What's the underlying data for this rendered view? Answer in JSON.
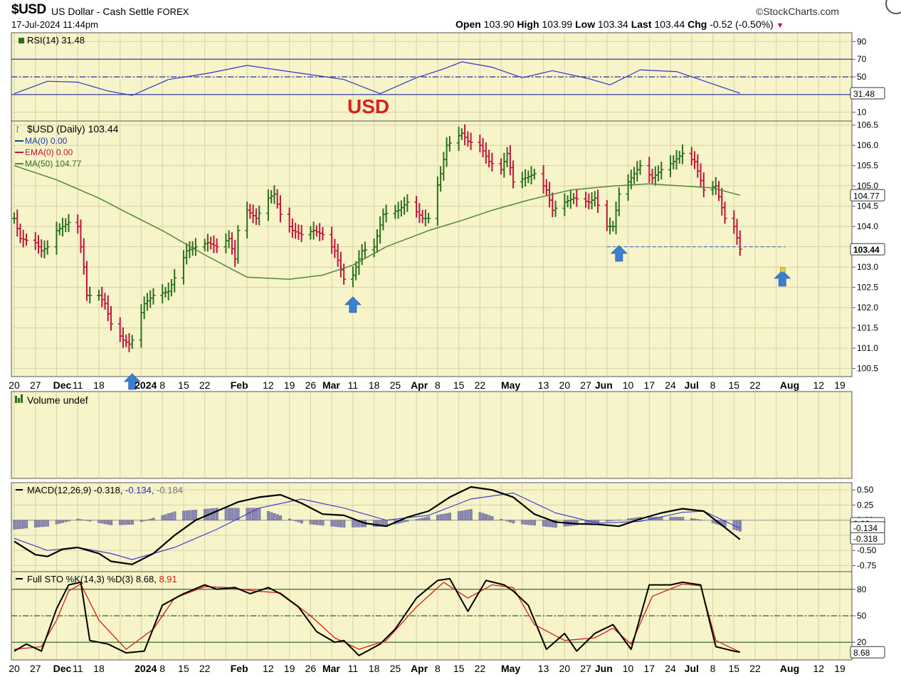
{
  "header": {
    "symbol": "$USD",
    "description": "US Dollar - Cash Settle",
    "exchange": "FOREX",
    "datetime": "17-Jul-2024 11:44pm",
    "source": "©StockCharts.com",
    "open_label": "Open",
    "open": "103.90",
    "high_label": "High",
    "high": "103.99",
    "low_label": "Low",
    "low": "103.34",
    "last_label": "Last",
    "last": "103.44",
    "chg_label": "Chg",
    "chg": "-0.52 (-0.50%)"
  },
  "colors": {
    "background": "#f6f4c8",
    "grid": "#d8d2a8",
    "up_bar": "#2c6f1e",
    "down_bar": "#c0143c",
    "ma50": "#4f8a3a",
    "rsi_line": "#3535c8",
    "macd_line": "#000000",
    "signal_line": "#4040d0",
    "histogram": "#8a87b8",
    "sto_k": "#000000",
    "sto_d": "#d81c1c",
    "arrow": "#3b7fd0",
    "annotation": "#d82020"
  },
  "annotation_text": "USD",
  "x_axis_labels": [
    "20",
    "27",
    "Dec",
    "11",
    "18",
    "2024",
    "8",
    "15",
    "22",
    "Feb",
    "12",
    "19",
    "26",
    "Mar",
    "11",
    "18",
    "25",
    "Apr",
    "8",
    "15",
    "22",
    "May",
    "13",
    "20",
    "27",
    "Jun",
    "10",
    "17",
    "24",
    "Jul",
    "8",
    "15",
    "22",
    "Aug",
    "12",
    "19"
  ],
  "chart_data": [
    {
      "type": "line",
      "panel": "RSI",
      "legend": "RSI(14) 31.48",
      "value": 31.48,
      "value_label": "31.48",
      "ylim": [
        0,
        100
      ],
      "ticks": [
        90,
        70,
        50,
        30,
        10
      ],
      "reference_lines": [
        70,
        50,
        30
      ],
      "series": [
        {
          "name": "RSI(14)",
          "x": [
            "2023-11-20",
            "2023-12-01",
            "2023-12-11",
            "2023-12-21",
            "2023-12-29",
            "2024-01-10",
            "2024-01-23",
            "2024-02-05",
            "2024-02-15",
            "2024-02-27",
            "2024-03-08",
            "2024-03-20",
            "2024-04-01",
            "2024-04-10",
            "2024-04-16",
            "2024-04-26",
            "2024-05-06",
            "2024-05-16",
            "2024-05-28",
            "2024-06-04",
            "2024-06-14",
            "2024-06-26",
            "2024-07-08",
            "2024-07-17"
          ],
          "values": [
            31,
            45,
            44,
            34,
            29,
            47,
            54,
            63,
            58,
            52,
            47,
            31,
            49,
            59,
            67,
            61,
            49,
            57,
            48,
            41,
            58,
            56,
            42,
            31.48
          ]
        }
      ]
    },
    {
      "type": "candlestick",
      "panel": "Price",
      "legend": [
        "$USD (Daily) 103.44",
        "MA(0) 0.00",
        "EMA(0) 0.00",
        "MA(50) 104.77"
      ],
      "last_label": "103.44",
      "ma50_label": "104.77",
      "ylim": [
        100.3,
        106.6
      ],
      "ticks": [
        106.5,
        106.0,
        105.5,
        105.0,
        104.5,
        104.0,
        103.5,
        103.0,
        102.5,
        102.0,
        101.5,
        101.0,
        100.5
      ],
      "support_line": 103.5,
      "close": {
        "x": [
          "2023-11-20",
          "2023-11-22",
          "2023-11-27",
          "2023-11-29",
          "2023-12-01",
          "2023-12-04",
          "2023-12-06",
          "2023-12-08",
          "2023-12-11",
          "2023-12-13",
          "2023-12-14",
          "2023-12-18",
          "2023-12-20",
          "2023-12-22",
          "2023-12-26",
          "2023-12-28",
          "2023-12-29",
          "2024-01-02",
          "2024-01-05",
          "2024-01-10",
          "2024-01-16",
          "2024-01-19",
          "2024-01-23",
          "2024-01-26",
          "2024-01-30",
          "2024-02-01",
          "2024-02-02",
          "2024-02-05",
          "2024-02-08",
          "2024-02-12",
          "2024-02-14",
          "2024-02-16",
          "2024-02-20",
          "2024-02-23",
          "2024-02-27",
          "2024-03-01",
          "2024-03-05",
          "2024-03-08",
          "2024-03-11",
          "2024-03-14",
          "2024-03-18",
          "2024-03-21",
          "2024-03-26",
          "2024-03-29",
          "2024-04-03",
          "2024-04-05",
          "2024-04-09",
          "2024-04-11",
          "2024-04-16",
          "2024-04-18",
          "2024-04-22",
          "2024-04-25",
          "2024-04-29",
          "2024-05-01",
          "2024-05-03",
          "2024-05-07",
          "2024-05-10",
          "2024-05-14",
          "2024-05-16",
          "2024-05-20",
          "2024-05-23",
          "2024-05-28",
          "2024-05-30",
          "2024-06-03",
          "2024-06-05",
          "2024-06-07",
          "2024-06-11",
          "2024-06-14",
          "2024-06-18",
          "2024-06-21",
          "2024-06-25",
          "2024-06-28",
          "2024-07-02",
          "2024-07-05",
          "2024-07-09",
          "2024-07-12",
          "2024-07-15",
          "2024-07-17"
        ],
        "values": [
          104.2,
          103.7,
          103.6,
          103.4,
          103.5,
          103.9,
          104.0,
          104.1,
          104.0,
          103.0,
          102.3,
          102.3,
          102.1,
          101.6,
          101.2,
          101.1,
          101.2,
          102.1,
          102.3,
          102.4,
          103.4,
          103.5,
          103.6,
          103.5,
          103.7,
          103.2,
          103.9,
          104.4,
          104.2,
          104.7,
          104.8,
          104.3,
          103.9,
          103.8,
          103.9,
          103.8,
          103.4,
          102.7,
          102.8,
          103.4,
          103.5,
          104.3,
          104.4,
          104.6,
          104.2,
          104.2,
          105.3,
          106.0,
          106.3,
          106.1,
          106.0,
          105.6,
          105.4,
          105.8,
          105.1,
          105.2,
          105.3,
          104.9,
          104.4,
          104.6,
          104.7,
          104.6,
          104.7,
          104.0,
          104.0,
          104.8,
          105.2,
          105.5,
          105.2,
          105.4,
          105.6,
          105.8,
          105.6,
          104.9,
          105.0,
          104.2,
          104.0,
          103.44
        ]
      },
      "ma50": {
        "x": [
          "2023-11-20",
          "2023-12-04",
          "2023-12-18",
          "2023-12-27",
          "2024-01-08",
          "2024-01-22",
          "2024-02-05",
          "2024-02-19",
          "2024-03-01",
          "2024-03-11",
          "2024-03-22",
          "2024-04-05",
          "2024-04-16",
          "2024-04-26",
          "2024-05-08",
          "2024-05-22",
          "2024-06-05",
          "2024-06-17",
          "2024-06-28",
          "2024-07-08",
          "2024-07-17"
        ],
        "values": [
          105.5,
          105.15,
          104.7,
          104.35,
          103.9,
          103.3,
          102.75,
          102.7,
          102.8,
          103.05,
          103.5,
          103.9,
          104.15,
          104.4,
          104.65,
          104.9,
          105.0,
          105.05,
          105.0,
          104.95,
          104.77
        ]
      },
      "arrows": [
        "2023-12-29",
        "2024-03-11",
        "2024-06-07",
        "2024-07-31"
      ]
    },
    {
      "type": "bar",
      "panel": "Volume",
      "legend": "Volume undef"
    },
    {
      "type": "line",
      "panel": "MACD",
      "legend": "MACD(12,26,9) -0.318",
      "legend_signal": "-0.134",
      "legend_hist": "-0.184",
      "macd_label": "-0.318",
      "signal_label": "-0.134",
      "zero_label": "0.00",
      "ylim": [
        -0.85,
        0.62
      ],
      "ticks": [
        0.5,
        0.25,
        0.0,
        -0.25,
        -0.5,
        -0.75
      ],
      "series": [
        {
          "name": "MACD",
          "x": [
            "2023-11-20",
            "2023-11-27",
            "2023-12-01",
            "2023-12-06",
            "2023-12-11",
            "2023-12-18",
            "2023-12-22",
            "2023-12-29",
            "2024-01-05",
            "2024-01-12",
            "2024-01-19",
            "2024-01-26",
            "2024-02-02",
            "2024-02-09",
            "2024-02-16",
            "2024-02-23",
            "2024-03-01",
            "2024-03-08",
            "2024-03-15",
            "2024-03-22",
            "2024-03-29",
            "2024-04-05",
            "2024-04-12",
            "2024-04-19",
            "2024-04-26",
            "2024-05-03",
            "2024-05-10",
            "2024-05-17",
            "2024-05-24",
            "2024-05-31",
            "2024-06-07",
            "2024-06-14",
            "2024-06-21",
            "2024-06-28",
            "2024-07-05",
            "2024-07-12",
            "2024-07-17"
          ],
          "values": [
            -0.35,
            -0.57,
            -0.6,
            -0.48,
            -0.45,
            -0.55,
            -0.68,
            -0.73,
            -0.55,
            -0.25,
            0.0,
            0.15,
            0.3,
            0.38,
            0.42,
            0.28,
            0.1,
            0.08,
            -0.05,
            -0.1,
            0.05,
            0.15,
            0.38,
            0.55,
            0.5,
            0.38,
            0.1,
            -0.03,
            -0.06,
            -0.07,
            -0.1,
            0.02,
            0.12,
            0.19,
            0.15,
            -0.12,
            -0.318
          ]
        },
        {
          "name": "Signal",
          "x": [
            "2023-11-20",
            "2023-12-01",
            "2023-12-11",
            "2023-12-22",
            "2023-12-29",
            "2024-01-12",
            "2024-01-26",
            "2024-02-09",
            "2024-02-23",
            "2024-03-08",
            "2024-03-22",
            "2024-04-05",
            "2024-04-19",
            "2024-05-03",
            "2024-05-17",
            "2024-05-31",
            "2024-06-14",
            "2024-06-28",
            "2024-07-05",
            "2024-07-17"
          ],
          "values": [
            -0.3,
            -0.5,
            -0.45,
            -0.55,
            -0.65,
            -0.45,
            -0.15,
            0.2,
            0.35,
            0.2,
            0.0,
            0.08,
            0.35,
            0.45,
            0.12,
            -0.05,
            -0.02,
            0.13,
            0.15,
            -0.134
          ]
        },
        {
          "name": "Histogram",
          "x": [
            "2023-11-20",
            "2023-12-01",
            "2023-12-11",
            "2023-12-22",
            "2023-12-29",
            "2024-01-12",
            "2024-01-26",
            "2024-02-09",
            "2024-02-23",
            "2024-03-08",
            "2024-03-22",
            "2024-04-05",
            "2024-04-19",
            "2024-05-03",
            "2024-05-17",
            "2024-05-31",
            "2024-06-14",
            "2024-06-28",
            "2024-07-05",
            "2024-07-17"
          ],
          "values": [
            -0.15,
            -0.1,
            0.02,
            -0.08,
            -0.07,
            0.14,
            0.2,
            0.2,
            -0.05,
            -0.12,
            -0.1,
            0.06,
            0.18,
            -0.05,
            -0.12,
            -0.04,
            0.05,
            0.05,
            0.0,
            -0.184
          ]
        }
      ]
    },
    {
      "type": "line",
      "panel": "Full STO",
      "legend": "Full STO %K(14,3) %D(3) 8.68,",
      "legend_d": "8.91",
      "k_label": "8.68",
      "ylim": [
        0,
        100
      ],
      "ticks": [
        80,
        50,
        20
      ],
      "reference_lines": [
        80,
        50,
        20
      ],
      "series": [
        {
          "name": "%K",
          "x": [
            "2023-11-20",
            "2023-11-24",
            "2023-11-29",
            "2023-12-04",
            "2023-12-08",
            "2023-12-12",
            "2023-12-15",
            "2023-12-21",
            "2023-12-27",
            "2024-01-02",
            "2024-01-08",
            "2024-01-15",
            "2024-01-22",
            "2024-01-26",
            "2024-02-01",
            "2024-02-06",
            "2024-02-12",
            "2024-02-16",
            "2024-02-22",
            "2024-02-28",
            "2024-03-05",
            "2024-03-08",
            "2024-03-13",
            "2024-03-20",
            "2024-03-25",
            "2024-04-01",
            "2024-04-08",
            "2024-04-12",
            "2024-04-18",
            "2024-04-24",
            "2024-04-30",
            "2024-05-03",
            "2024-05-08",
            "2024-05-14",
            "2024-05-20",
            "2024-05-24",
            "2024-05-30",
            "2024-06-05",
            "2024-06-11",
            "2024-06-17",
            "2024-06-24",
            "2024-06-28",
            "2024-07-04",
            "2024-07-09",
            "2024-07-15",
            "2024-07-17"
          ],
          "values": [
            10,
            18,
            10,
            58,
            85,
            88,
            22,
            18,
            8,
            10,
            62,
            75,
            85,
            80,
            82,
            75,
            82,
            75,
            60,
            32,
            20,
            22,
            5,
            18,
            35,
            70,
            90,
            92,
            55,
            90,
            85,
            78,
            62,
            12,
            30,
            10,
            30,
            40,
            12,
            85,
            85,
            88,
            85,
            15,
            10,
            8.68
          ]
        },
        {
          "name": "%D",
          "x": [
            "2023-11-20",
            "2023-11-29",
            "2023-12-04",
            "2023-12-08",
            "2023-12-12",
            "2023-12-18",
            "2023-12-27",
            "2024-01-05",
            "2024-01-12",
            "2024-01-22",
            "2024-01-29",
            "2024-02-08",
            "2024-02-16",
            "2024-02-26",
            "2024-03-05",
            "2024-03-13",
            "2024-03-22",
            "2024-04-01",
            "2024-04-10",
            "2024-04-18",
            "2024-04-26",
            "2024-05-03",
            "2024-05-10",
            "2024-05-20",
            "2024-05-30",
            "2024-06-05",
            "2024-06-11",
            "2024-06-18",
            "2024-06-28",
            "2024-07-04",
            "2024-07-09",
            "2024-07-17"
          ],
          "values": [
            12,
            15,
            45,
            78,
            86,
            45,
            12,
            35,
            70,
            83,
            82,
            78,
            76,
            50,
            25,
            12,
            22,
            60,
            88,
            70,
            85,
            82,
            40,
            22,
            25,
            36,
            18,
            72,
            86,
            84,
            22,
            8.91
          ]
        }
      ]
    }
  ]
}
